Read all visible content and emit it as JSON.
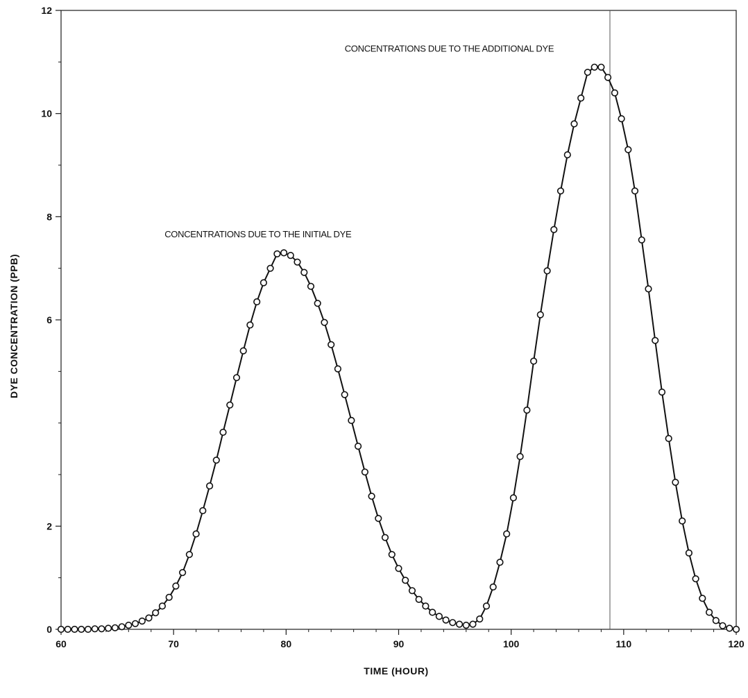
{
  "chart_data": {
    "type": "line",
    "xlabel": "TIME  (HOUR)",
    "ylabel": "DYE  CONCENTRATION  (PPB)",
    "xlim": [
      60,
      120
    ],
    "ylim": [
      0,
      12
    ],
    "x_ticks": [
      60,
      70,
      80,
      90,
      100,
      110,
      120
    ],
    "y_ticks": [
      0,
      2,
      6,
      8,
      10,
      12
    ],
    "grid": false,
    "markers": "open-circle",
    "annotations": [
      {
        "text": "CONCENTRATIONS DUE TO THE INITIAL DYE",
        "x": 77.5,
        "y": 7.6
      },
      {
        "text": "CONCENTRATIONS DUE TO THE ADDITIONAL DYE",
        "x": 94.5,
        "y": 11.2
      }
    ],
    "series": [
      {
        "x": [
          60.0,
          60.6,
          61.2,
          61.8,
          62.4,
          63.0,
          63.6,
          64.2,
          64.8,
          65.4,
          66.0,
          66.6,
          67.2,
          67.8,
          68.4,
          69.0,
          69.6,
          70.2,
          70.8,
          71.4,
          72.0,
          72.6,
          73.2,
          73.8,
          74.4,
          75.0,
          75.6,
          76.2,
          76.8,
          77.4,
          78.0,
          78.6,
          79.2,
          79.8,
          80.4,
          81.0,
          81.6,
          82.2,
          82.8,
          83.4,
          84.0,
          84.6,
          85.2,
          85.8,
          86.4,
          87.0,
          87.6,
          88.2,
          88.8,
          89.4,
          90.0,
          90.6,
          91.2,
          91.8,
          92.4,
          93.0,
          93.6,
          94.2,
          94.8,
          95.4,
          96.0,
          96.6,
          97.2,
          97.8,
          98.4,
          99.0,
          99.6,
          100.2,
          100.8,
          101.4,
          102.0,
          102.6,
          103.2,
          103.8,
          104.4,
          105.0,
          105.6,
          106.2,
          106.8,
          107.4,
          108.0,
          108.6,
          109.2,
          109.8,
          110.4,
          111.0,
          111.6,
          112.2,
          112.8,
          113.4,
          114.0,
          114.6,
          115.2,
          115.8,
          116.4,
          117.0,
          117.6,
          118.2,
          118.8,
          119.4,
          120.0
        ],
        "values": [
          0.0,
          0.0,
          0.0,
          0.0,
          0.0,
          0.01,
          0.01,
          0.02,
          0.03,
          0.05,
          0.08,
          0.11,
          0.16,
          0.22,
          0.32,
          0.45,
          0.62,
          0.84,
          1.1,
          1.45,
          1.85,
          2.3,
          2.78,
          3.28,
          3.82,
          4.35,
          4.88,
          5.4,
          5.9,
          6.35,
          6.72,
          7.0,
          7.28,
          7.3,
          7.25,
          7.12,
          6.92,
          6.65,
          6.32,
          5.95,
          5.52,
          5.05,
          4.55,
          4.05,
          3.55,
          3.05,
          2.58,
          2.15,
          1.78,
          1.45,
          1.18,
          0.95,
          0.75,
          0.58,
          0.45,
          0.33,
          0.25,
          0.18,
          0.13,
          0.1,
          0.08,
          0.1,
          0.2,
          0.45,
          0.82,
          1.3,
          1.85,
          2.55,
          3.35,
          4.25,
          5.2,
          6.1,
          6.95,
          7.75,
          8.5,
          9.2,
          9.8,
          10.3,
          10.8,
          10.9,
          10.9,
          10.7,
          10.4,
          9.9,
          9.3,
          8.5,
          7.55,
          6.6,
          5.6,
          4.6,
          3.7,
          2.85,
          2.1,
          1.48,
          0.98,
          0.6,
          0.33,
          0.17,
          0.07,
          0.02,
          0.0
        ]
      }
    ]
  }
}
